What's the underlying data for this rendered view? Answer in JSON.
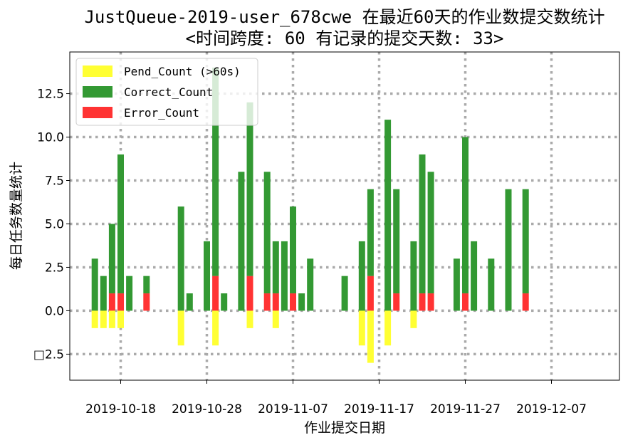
{
  "chart_data": {
    "type": "bar",
    "title": "JustQueue-2019-user_678cwe 在最近60天的作业数提交数统计",
    "subtitle": "<时间跨度: 60  有记录的提交天数: 33>",
    "xlabel": "作业提交日期",
    "ylabel": "每日任务数量统计",
    "x_tick_labels": [
      "2019-10-18",
      "2019-10-28",
      "2019-11-07",
      "2019-11-17",
      "2019-11-27",
      "2019-12-07"
    ],
    "y_tick_labels": [
      "□2.5",
      "0.0",
      "2.5",
      "5.0",
      "7.5",
      "10.0",
      "12.5"
    ],
    "y_ticks": [
      -2.5,
      0,
      2.5,
      5,
      7.5,
      10,
      12.5
    ],
    "ylim": [
      -4.0,
      14.9
    ],
    "grid": true,
    "legend_position": "top-left",
    "colors": {
      "pend": "#ffff33",
      "correct": "#339933",
      "error": "#ff3333",
      "grid": "#aaaaaa"
    },
    "series": [
      {
        "name": "Pend_Count (>60s)",
        "key": "pend"
      },
      {
        "name": "Correct_Count",
        "key": "correct"
      },
      {
        "name": "Error_Count",
        "key": "error"
      }
    ],
    "days": [
      {
        "date": "2019-10-15",
        "correct": 3,
        "error": 0,
        "pend": -1
      },
      {
        "date": "2019-10-16",
        "correct": 2,
        "error": 0,
        "pend": -1
      },
      {
        "date": "2019-10-17",
        "correct": 4,
        "error": 1,
        "pend": -1
      },
      {
        "date": "2019-10-18",
        "correct": 8,
        "error": 1,
        "pend": -1
      },
      {
        "date": "2019-10-19",
        "correct": 2,
        "error": 0,
        "pend": 0
      },
      {
        "date": "2019-10-21",
        "correct": 1,
        "error": 1,
        "pend": 0
      },
      {
        "date": "2019-10-25",
        "correct": 6,
        "error": 0,
        "pend": -2
      },
      {
        "date": "2019-10-26",
        "correct": 1,
        "error": 0,
        "pend": 0
      },
      {
        "date": "2019-10-28",
        "correct": 4,
        "error": 0,
        "pend": 0
      },
      {
        "date": "2019-10-29",
        "correct": 12,
        "error": 2,
        "pend": -2
      },
      {
        "date": "2019-10-30",
        "correct": 1,
        "error": 0,
        "pend": 0
      },
      {
        "date": "2019-11-01",
        "correct": 8,
        "error": 0,
        "pend": 0
      },
      {
        "date": "2019-11-02",
        "correct": 10,
        "error": 2,
        "pend": -1
      },
      {
        "date": "2019-11-04",
        "correct": 7,
        "error": 1,
        "pend": 0
      },
      {
        "date": "2019-11-05",
        "correct": 3,
        "error": 1,
        "pend": -1
      },
      {
        "date": "2019-11-06",
        "correct": 4,
        "error": 0,
        "pend": 0
      },
      {
        "date": "2019-11-07",
        "correct": 5,
        "error": 1,
        "pend": 0
      },
      {
        "date": "2019-11-08",
        "correct": 1,
        "error": 0,
        "pend": 0
      },
      {
        "date": "2019-11-09",
        "correct": 3,
        "error": 0,
        "pend": 0
      },
      {
        "date": "2019-11-13",
        "correct": 2,
        "error": 0,
        "pend": 0
      },
      {
        "date": "2019-11-15",
        "correct": 4,
        "error": 0,
        "pend": -2
      },
      {
        "date": "2019-11-16",
        "correct": 5,
        "error": 2,
        "pend": -3
      },
      {
        "date": "2019-11-18",
        "correct": 11,
        "error": 0,
        "pend": -2
      },
      {
        "date": "2019-11-19",
        "correct": 6,
        "error": 1,
        "pend": 0
      },
      {
        "date": "2019-11-21",
        "correct": 4,
        "error": 0,
        "pend": -1
      },
      {
        "date": "2019-11-22",
        "correct": 8,
        "error": 1,
        "pend": 0
      },
      {
        "date": "2019-11-23",
        "correct": 7,
        "error": 1,
        "pend": 0
      },
      {
        "date": "2019-11-26",
        "correct": 3,
        "error": 0,
        "pend": 0
      },
      {
        "date": "2019-11-27",
        "correct": 9,
        "error": 1,
        "pend": 0
      },
      {
        "date": "2019-11-28",
        "correct": 4,
        "error": 0,
        "pend": 0
      },
      {
        "date": "2019-11-30",
        "correct": 3,
        "error": 0,
        "pend": 0
      },
      {
        "date": "2019-12-02",
        "correct": 7,
        "error": 0,
        "pend": 0
      },
      {
        "date": "2019-12-04",
        "correct": 6,
        "error": 1,
        "pend": 0
      }
    ]
  }
}
